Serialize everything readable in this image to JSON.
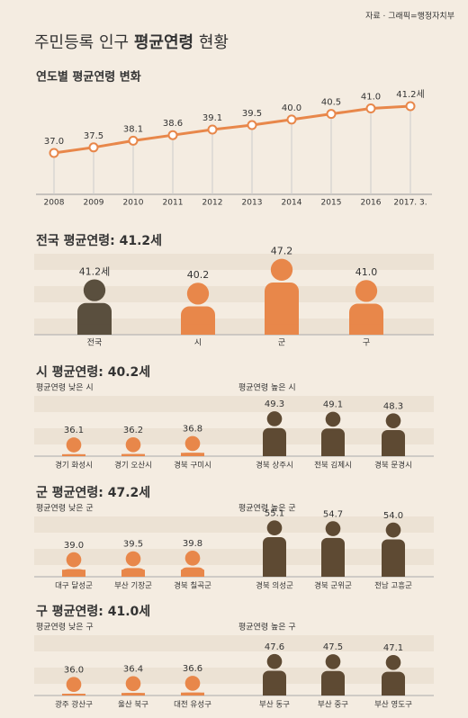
{
  "source": "자료 · 그래픽=행정자치부",
  "title": {
    "prefix": "주민등록 인구",
    "bold": "평균연령",
    "suffix": "현황"
  },
  "chart_data": [
    {
      "type": "line",
      "title": "연도별 평균연령 변화",
      "color": "#e8874a",
      "categories": [
        "2008",
        "2009",
        "2010",
        "2011",
        "2012",
        "2013",
        "2014",
        "2015",
        "2016",
        "2017. 3."
      ],
      "values": [
        37.0,
        37.5,
        38.1,
        38.6,
        39.1,
        39.5,
        40.0,
        40.5,
        41.0,
        41.2
      ],
      "value_labels": [
        "37.0",
        "37.5",
        "38.1",
        "38.6",
        "39.1",
        "39.5",
        "40.0",
        "40.5",
        "41.0",
        "41.2세"
      ]
    },
    {
      "type": "pictogram",
      "title": "전국 평균연령: 41.2세",
      "categories": [
        "전국",
        "시",
        "군",
        "구"
      ],
      "values": [
        41.2,
        40.2,
        47.2,
        41.0
      ],
      "value_labels": [
        "41.2세",
        "40.2",
        "47.2",
        "41.0"
      ],
      "colors": [
        "#5a4f3e",
        "#e8874a",
        "#e8874a",
        "#e8874a"
      ]
    },
    {
      "type": "pictogram-groups",
      "title": "시 평균연령: 40.2세",
      "series": [
        {
          "name": "평균연령 낮은 시",
          "color": "#e8874a",
          "categories": [
            "경기 화성시",
            "경기 오산시",
            "경북 구미시"
          ],
          "values": [
            36.1,
            36.2,
            36.8
          ],
          "value_labels": [
            "36.1",
            "36.2",
            "36.8"
          ]
        },
        {
          "name": "평균연령 높은 시",
          "color": "#5e4a33",
          "categories": [
            "경북 상주시",
            "전북 김제시",
            "경북 문경시"
          ],
          "values": [
            49.3,
            49.1,
            48.3
          ],
          "value_labels": [
            "49.3",
            "49.1",
            "48.3"
          ]
        }
      ]
    },
    {
      "type": "pictogram-groups",
      "title": "군 평균연령: 47.2세",
      "series": [
        {
          "name": "평균연령 낮은 군",
          "color": "#e8874a",
          "categories": [
            "대구 달성군",
            "부산 기장군",
            "경북 칠곡군"
          ],
          "values": [
            39.0,
            39.5,
            39.8
          ],
          "value_labels": [
            "39.0",
            "39.5",
            "39.8"
          ]
        },
        {
          "name": "평균연령 높은 군",
          "color": "#5e4a33",
          "categories": [
            "경북 의성군",
            "경북 군위군",
            "전남 고흥군"
          ],
          "values": [
            55.1,
            54.7,
            54.0
          ],
          "value_labels": [
            "55.1",
            "54.7",
            "54.0"
          ]
        }
      ]
    },
    {
      "type": "pictogram-groups",
      "title": "구 평균연령: 41.0세",
      "series": [
        {
          "name": "평균연령 낮은 구",
          "color": "#e8874a",
          "categories": [
            "광주 광산구",
            "울산 북구",
            "대전 유성구"
          ],
          "values": [
            36.0,
            36.4,
            36.6
          ],
          "value_labels": [
            "36.0",
            "36.4",
            "36.6"
          ]
        },
        {
          "name": "평균연령 높은 구",
          "color": "#5e4a33",
          "categories": [
            "부산 동구",
            "부산 중구",
            "부산 영도구"
          ],
          "values": [
            47.6,
            47.5,
            47.1
          ],
          "value_labels": [
            "47.6",
            "47.5",
            "47.1"
          ]
        }
      ]
    }
  ]
}
